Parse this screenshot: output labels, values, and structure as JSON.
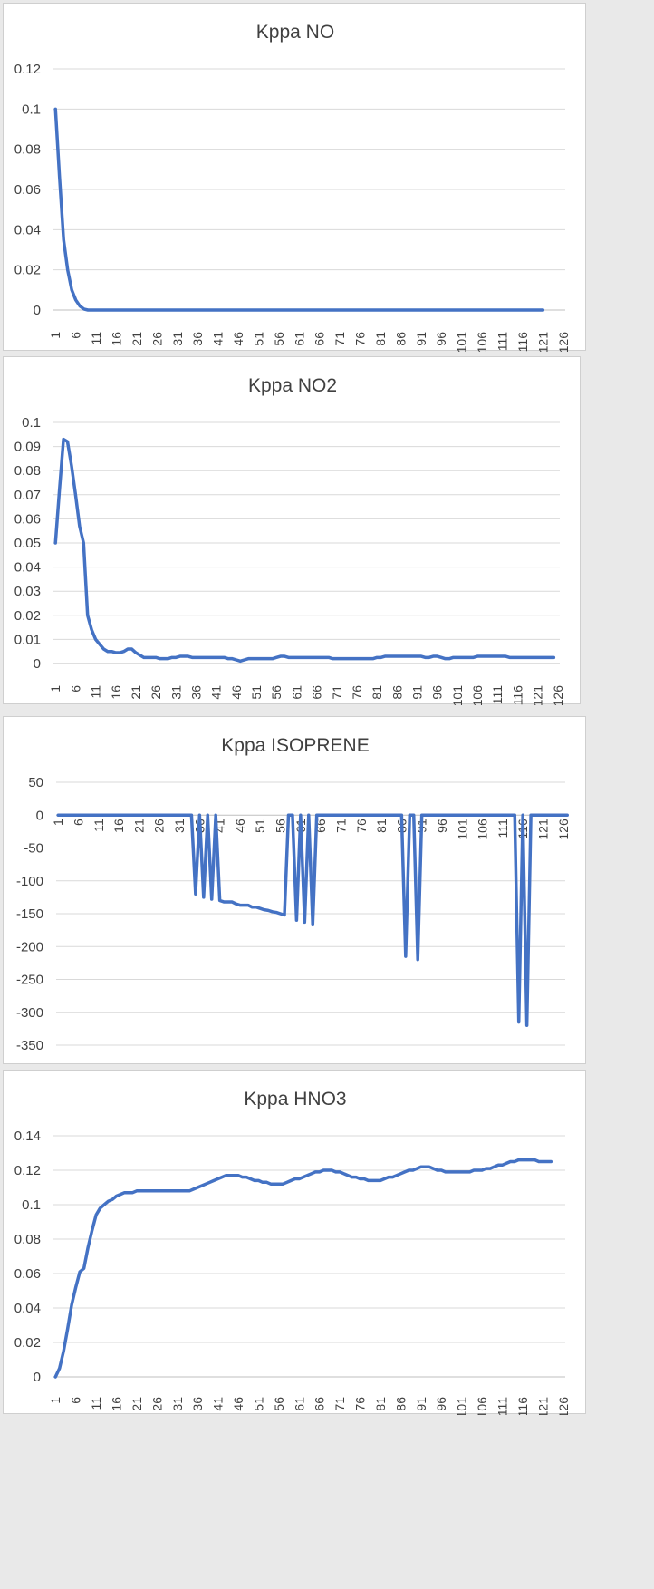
{
  "chart_data": [
    {
      "type": "line",
      "title": "Kppa NO",
      "xlabel": "",
      "ylabel": "",
      "ylim": [
        0,
        0.12
      ],
      "y_ticks": [
        "0",
        "0.02",
        "0.04",
        "0.06",
        "0.08",
        "0.1",
        "0.12"
      ],
      "x_ticks": [
        "1",
        "6",
        "11",
        "16",
        "21",
        "26",
        "31",
        "36",
        "41",
        "46",
        "51",
        "56",
        "61",
        "66",
        "71",
        "76",
        "81",
        "86",
        "91",
        "96",
        "101",
        "106",
        "111",
        "116",
        "121",
        "126"
      ],
      "grid": true,
      "legend": "none",
      "series": [
        {
          "color": "#4472c4",
          "values": [
            0.1,
            0.066,
            0.035,
            0.02,
            0.01,
            0.005,
            0.002,
            0.0005,
            0,
            0,
            0,
            0,
            0,
            0,
            0,
            0,
            0,
            0,
            0,
            0,
            0,
            0,
            0,
            0,
            0,
            0,
            0,
            0,
            0,
            0,
            0,
            0,
            0,
            0,
            0,
            0,
            0,
            0,
            0,
            0,
            0,
            0,
            0,
            0,
            0,
            0,
            0,
            0,
            0,
            0,
            0,
            0,
            0,
            0,
            0,
            0,
            0,
            0,
            0,
            0,
            0,
            0,
            0,
            0,
            0,
            0,
            0,
            0,
            0,
            0,
            0,
            0,
            0,
            0,
            0,
            0,
            0,
            0,
            0,
            0,
            0,
            0,
            0,
            0,
            0,
            0,
            0,
            0,
            0,
            0,
            0,
            0,
            0,
            0,
            0,
            0,
            0,
            0,
            0,
            0,
            0,
            0,
            0,
            0,
            0,
            0,
            0,
            0,
            0,
            0,
            0,
            0,
            0,
            0,
            0,
            0,
            0,
            0,
            0,
            0,
            0
          ]
        }
      ]
    },
    {
      "type": "line",
      "title": "Kppa NO2",
      "xlabel": "",
      "ylabel": "",
      "ylim": [
        0,
        0.1
      ],
      "y_ticks": [
        "0",
        "0.01",
        "0.02",
        "0.03",
        "0.04",
        "0.05",
        "0.06",
        "0.07",
        "0.08",
        "0.09",
        "0.1"
      ],
      "x_ticks": [
        "1",
        "6",
        "11",
        "16",
        "21",
        "26",
        "31",
        "36",
        "41",
        "46",
        "51",
        "56",
        "61",
        "66",
        "71",
        "76",
        "81",
        "86",
        "91",
        "96",
        "101",
        "106",
        "111",
        "116",
        "121",
        "126"
      ],
      "grid": true,
      "legend": "none",
      "series": [
        {
          "color": "#4472c4",
          "values": [
            0.05,
            0.072,
            0.093,
            0.092,
            0.082,
            0.07,
            0.057,
            0.05,
            0.02,
            0.014,
            0.01,
            0.008,
            0.006,
            0.005,
            0.005,
            0.0045,
            0.0045,
            0.005,
            0.006,
            0.006,
            0.0045,
            0.0035,
            0.0025,
            0.0025,
            0.0025,
            0.0025,
            0.002,
            0.002,
            0.002,
            0.0025,
            0.0025,
            0.003,
            0.003,
            0.003,
            0.0025,
            0.0025,
            0.0025,
            0.0025,
            0.0025,
            0.0025,
            0.0025,
            0.0025,
            0.0025,
            0.002,
            0.002,
            0.0015,
            0.001,
            0.0015,
            0.002,
            0.002,
            0.002,
            0.002,
            0.002,
            0.002,
            0.002,
            0.0025,
            0.003,
            0.003,
            0.0025,
            0.0025,
            0.0025,
            0.0025,
            0.0025,
            0.0025,
            0.0025,
            0.0025,
            0.0025,
            0.0025,
            0.0025,
            0.002,
            0.002,
            0.002,
            0.002,
            0.002,
            0.002,
            0.002,
            0.002,
            0.002,
            0.002,
            0.002,
            0.0025,
            0.0025,
            0.003,
            0.003,
            0.003,
            0.003,
            0.003,
            0.003,
            0.003,
            0.003,
            0.003,
            0.003,
            0.0025,
            0.0025,
            0.003,
            0.003,
            0.0025,
            0.002,
            0.002,
            0.0025,
            0.0025,
            0.0025,
            0.0025,
            0.0025,
            0.0025,
            0.003,
            0.003,
            0.003,
            0.003,
            0.003,
            0.003,
            0.003,
            0.003,
            0.0025,
            0.0025,
            0.0025,
            0.0025,
            0.0025,
            0.0025,
            0.0025,
            0.0025,
            0.0025,
            0.0025,
            0.0025,
            0.0025
          ]
        }
      ]
    },
    {
      "type": "line",
      "title": "Kppa ISOPRENE",
      "xlabel": "",
      "ylabel": "",
      "ylim": [
        -350,
        50
      ],
      "y_ticks": [
        "-350",
        "-300",
        "-250",
        "-200",
        "-150",
        "-100",
        "-50",
        "0",
        "50"
      ],
      "x_ticks": [
        "1",
        "6",
        "11",
        "16",
        "21",
        "26",
        "31",
        "36",
        "41",
        "46",
        "51",
        "56",
        "61",
        "66",
        "71",
        "76",
        "81",
        "86",
        "91",
        "96",
        "101",
        "106",
        "111",
        "116",
        "121",
        "126"
      ],
      "grid": true,
      "legend": "none",
      "series": [
        {
          "color": "#4472c4",
          "values": [
            0,
            0,
            0,
            0,
            0,
            0,
            0,
            0,
            0,
            0,
            0,
            0,
            0,
            0,
            0,
            0,
            0,
            0,
            0,
            0,
            0,
            0,
            0,
            0,
            0,
            0,
            0,
            0,
            0,
            0,
            0,
            0,
            0,
            0,
            -120,
            0,
            -125,
            0,
            -128,
            0,
            -130,
            -132,
            -132,
            -132,
            -135,
            -137,
            -137,
            -137,
            -140,
            -140,
            -142,
            -144,
            -145,
            -147,
            -148,
            -150,
            -152,
            0,
            0,
            -160,
            0,
            -163,
            0,
            -167,
            0,
            0,
            0,
            0,
            0,
            0,
            0,
            0,
            0,
            0,
            0,
            0,
            0,
            0,
            0,
            0,
            0,
            0,
            0,
            0,
            0,
            0,
            -215,
            0,
            0,
            -220,
            0,
            0,
            0,
            0,
            0,
            0,
            0,
            0,
            0,
            0,
            0,
            0,
            0,
            0,
            0,
            0,
            0,
            0,
            0,
            0,
            0,
            0,
            0,
            0,
            -315,
            0,
            -320,
            0,
            0,
            0,
            0,
            0,
            0,
            0,
            0,
            0,
            0
          ]
        }
      ]
    },
    {
      "type": "line",
      "title": "Kppa HNO3",
      "xlabel": "",
      "ylabel": "",
      "ylim": [
        0,
        0.14
      ],
      "y_ticks": [
        "0",
        "0.02",
        "0.04",
        "0.06",
        "0.08",
        "0.1",
        "0.12",
        "0.14"
      ],
      "x_ticks": [
        "1",
        "6",
        "11",
        "16",
        "21",
        "26",
        "31",
        "36",
        "41",
        "46",
        "51",
        "56",
        "61",
        "66",
        "71",
        "76",
        "81",
        "86",
        "91",
        "96",
        "101",
        "106",
        "111",
        "116",
        "121",
        "126"
      ],
      "grid": true,
      "legend": "none",
      "series": [
        {
          "color": "#4472c4",
          "values": [
            0,
            0.005,
            0.015,
            0.028,
            0.042,
            0.052,
            0.061,
            0.063,
            0.075,
            0.085,
            0.094,
            0.098,
            0.1,
            0.102,
            0.103,
            0.105,
            0.106,
            0.107,
            0.107,
            0.107,
            0.108,
            0.108,
            0.108,
            0.108,
            0.108,
            0.108,
            0.108,
            0.108,
            0.108,
            0.108,
            0.108,
            0.108,
            0.108,
            0.108,
            0.109,
            0.11,
            0.111,
            0.112,
            0.113,
            0.114,
            0.115,
            0.116,
            0.117,
            0.117,
            0.117,
            0.117,
            0.116,
            0.116,
            0.115,
            0.114,
            0.114,
            0.113,
            0.113,
            0.112,
            0.112,
            0.112,
            0.112,
            0.113,
            0.114,
            0.115,
            0.115,
            0.116,
            0.117,
            0.118,
            0.119,
            0.119,
            0.12,
            0.12,
            0.12,
            0.119,
            0.119,
            0.118,
            0.117,
            0.116,
            0.116,
            0.115,
            0.115,
            0.114,
            0.114,
            0.114,
            0.114,
            0.115,
            0.116,
            0.116,
            0.117,
            0.118,
            0.119,
            0.12,
            0.12,
            0.121,
            0.122,
            0.122,
            0.122,
            0.121,
            0.12,
            0.12,
            0.119,
            0.119,
            0.119,
            0.119,
            0.119,
            0.119,
            0.119,
            0.12,
            0.12,
            0.12,
            0.121,
            0.121,
            0.122,
            0.123,
            0.123,
            0.124,
            0.125,
            0.125,
            0.126,
            0.126,
            0.126,
            0.126,
            0.126,
            0.125,
            0.125,
            0.125,
            0.125
          ]
        }
      ]
    }
  ]
}
